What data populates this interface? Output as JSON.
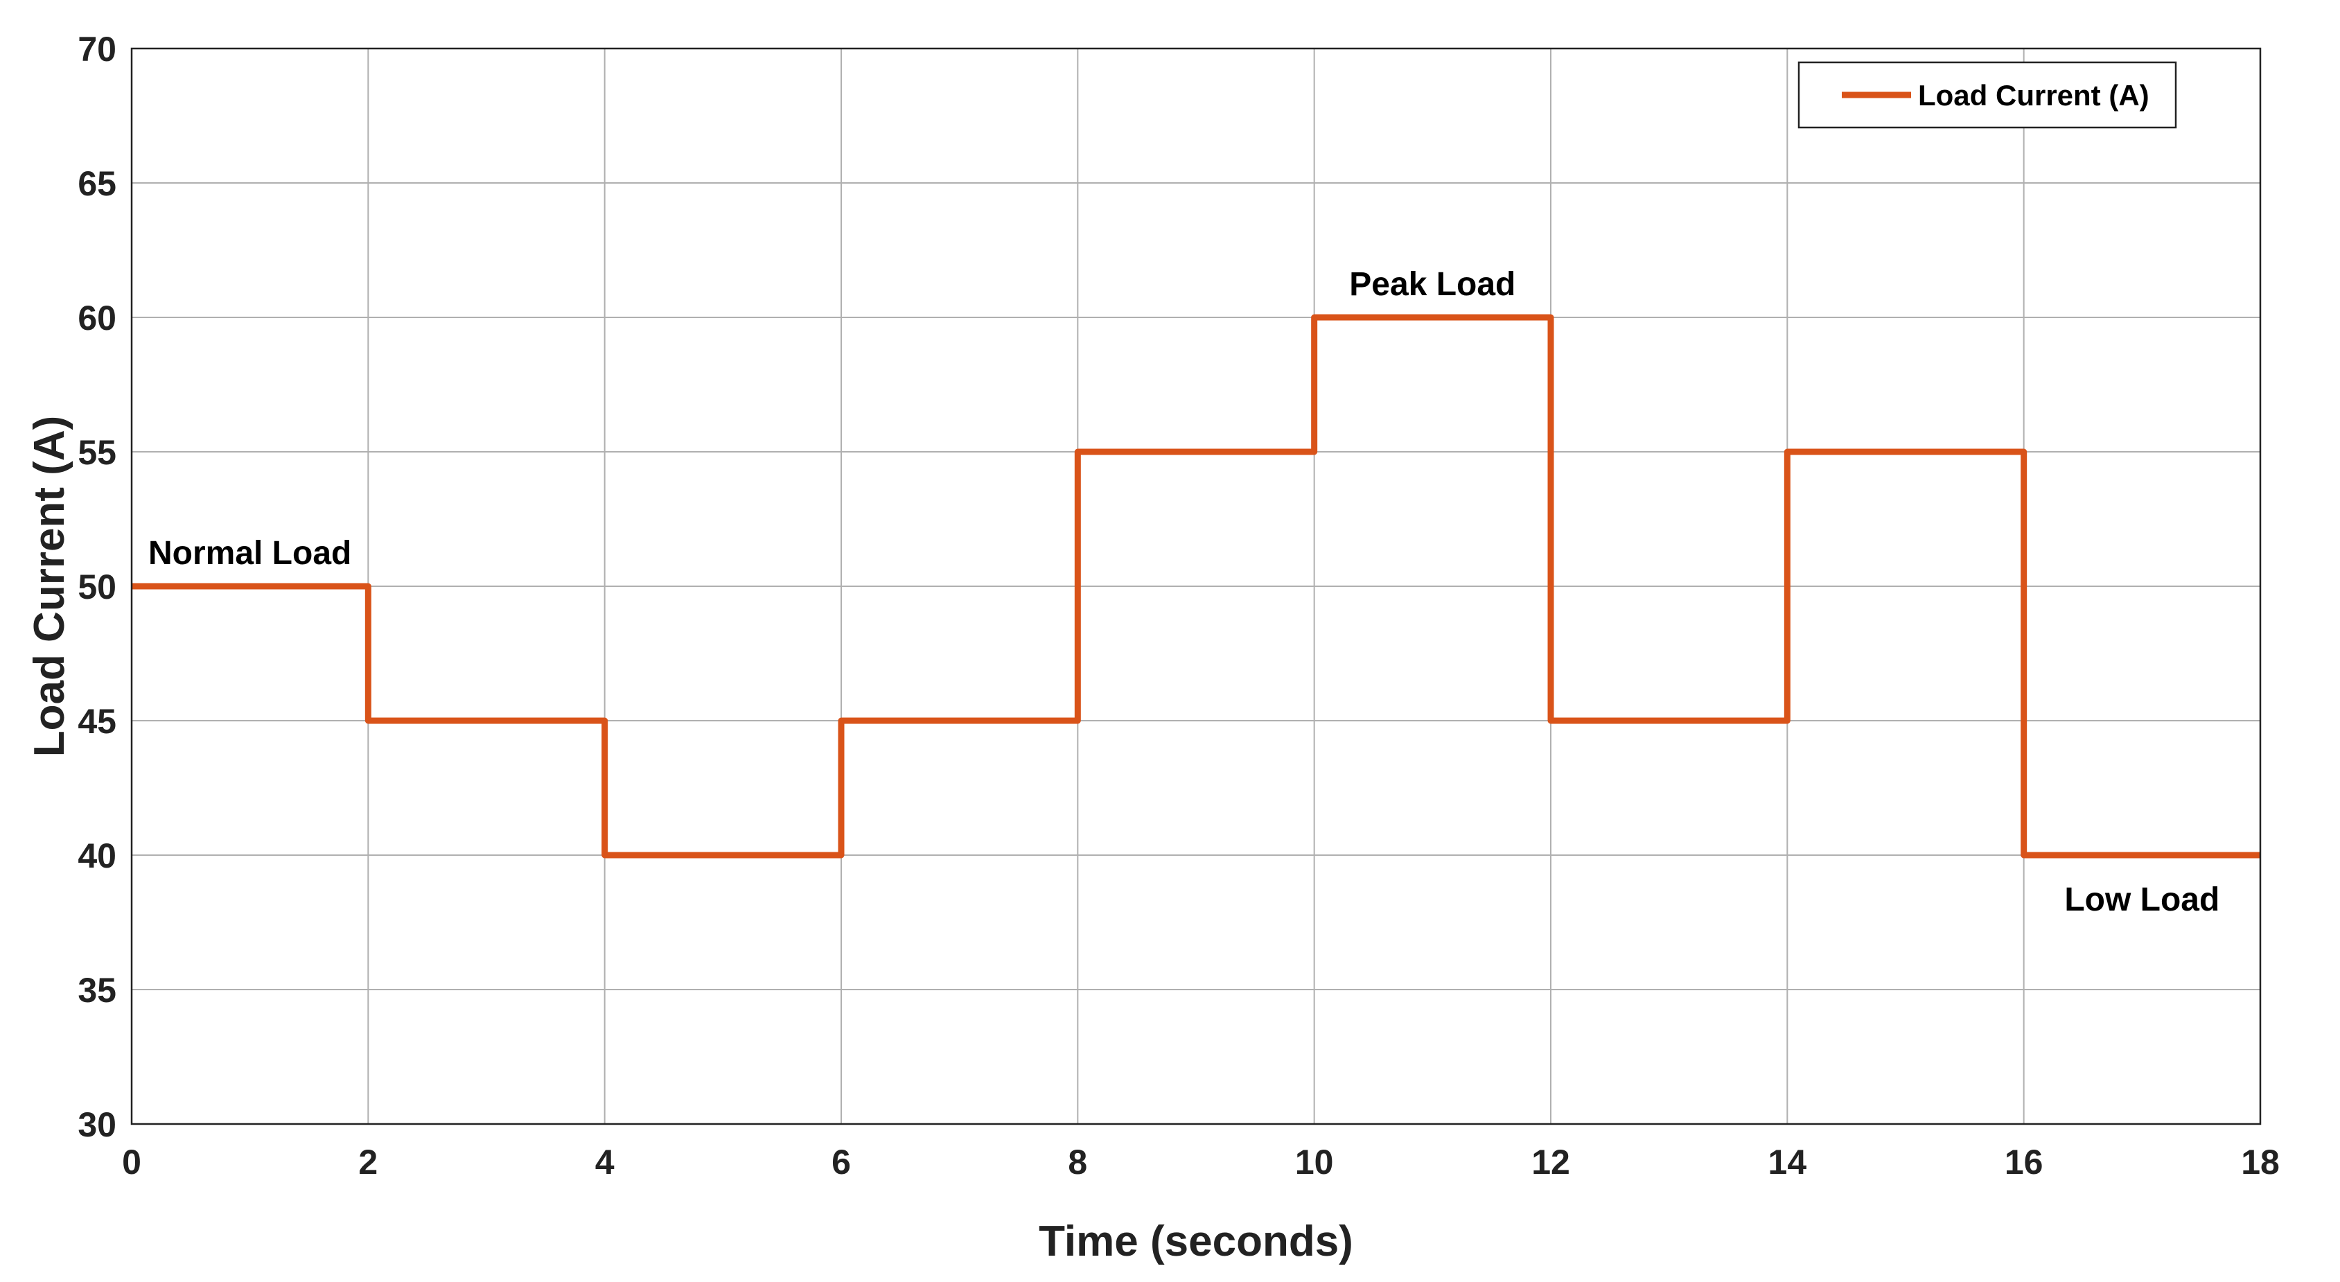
{
  "chart_data": {
    "type": "line",
    "step": true,
    "title": "",
    "xlabel": "Time (seconds)",
    "ylabel": "Load Current (A)",
    "xlim": [
      0,
      18
    ],
    "ylim": [
      30,
      70
    ],
    "xticks": [
      0,
      2,
      4,
      6,
      8,
      10,
      12,
      14,
      16,
      18
    ],
    "yticks": [
      30,
      35,
      40,
      45,
      50,
      55,
      60,
      65,
      70
    ],
    "grid": true,
    "legend": {
      "position": "top-right",
      "entries": [
        "Load Current (A)"
      ]
    },
    "series": [
      {
        "name": "Load Current (A)",
        "color": "#d95319",
        "x": [
          0,
          2,
          4,
          6,
          8,
          10,
          12,
          14,
          16,
          18
        ],
        "values": [
          50,
          45,
          40,
          45,
          55,
          60,
          45,
          55,
          40,
          40
        ]
      }
    ],
    "annotations": [
      {
        "text": "Normal Load",
        "x": 1,
        "y": 50,
        "anchor": "above"
      },
      {
        "text": "Peak Load",
        "x": 11,
        "y": 60,
        "anchor": "above"
      },
      {
        "text": "Low Load",
        "x": 17,
        "y": 40,
        "anchor": "below"
      }
    ]
  }
}
